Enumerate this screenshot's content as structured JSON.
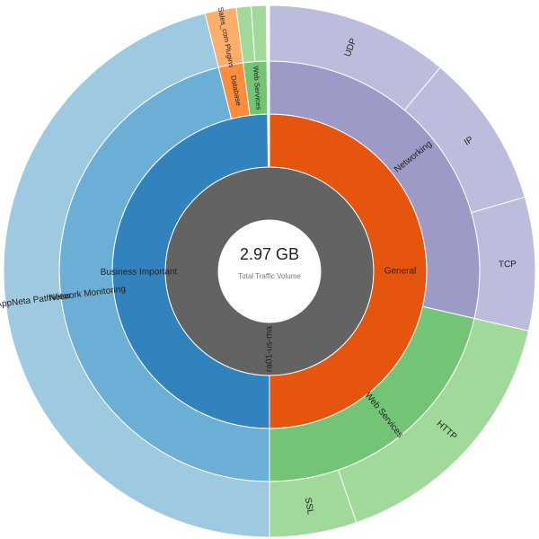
{
  "chart_data": {
    "type": "sunburst",
    "center_value": "2.97 GB",
    "center_label": "Total Traffic Volume",
    "root": {
      "name": "ra01-us-ma",
      "color": "#636363",
      "value": 100,
      "children": [
        {
          "name": "General",
          "color": "#e6550d",
          "value": 50,
          "children": [
            {
              "name": "Networking",
              "color": "#9e9ac8",
              "value": 28.6,
              "children": [
                {
                  "name": "UDP",
                  "color": "#bcbddc",
                  "value": 11.1
                },
                {
                  "name": "IP",
                  "color": "#bcbddc",
                  "value": 9.4
                },
                {
                  "name": "TCP",
                  "color": "#bcbddc",
                  "value": 8.1
                }
              ]
            },
            {
              "name": "Web Services",
              "color": "#74c476",
              "value": 21.4,
              "children": [
                {
                  "name": "HTTP",
                  "color": "#a1d99b",
                  "value": 16.1
                },
                {
                  "name": "SSL",
                  "color": "#a1d99b",
                  "value": 5.3
                }
              ]
            }
          ]
        },
        {
          "name": "Business Important",
          "color": "#3182bd",
          "value": 49.8,
          "children": [
            {
              "name": "Network Monitoring",
              "color": "#6baed6",
              "value": 46.1,
              "children": [
                {
                  "name": "AppNeta PathView",
                  "color": "#9ecae1",
                  "value": 46.1
                }
              ]
            },
            {
              "name": "Database",
              "color": "#fd8d3c",
              "value": 1.9,
              "children": [
                {
                  "name": "Sales_com Plugins",
                  "color": "#fdae6b",
                  "value": 1.9
                }
              ]
            },
            {
              "name": "Web Services",
              "color": "#74c476",
              "value": 1.8,
              "children": [
                {
                  "name": null,
                  "color": "#a1d99b",
                  "value": 0.9
                },
                {
                  "name": null,
                  "color": "#a1d99b",
                  "value": 0.9
                }
              ]
            }
          ]
        }
      ]
    }
  }
}
